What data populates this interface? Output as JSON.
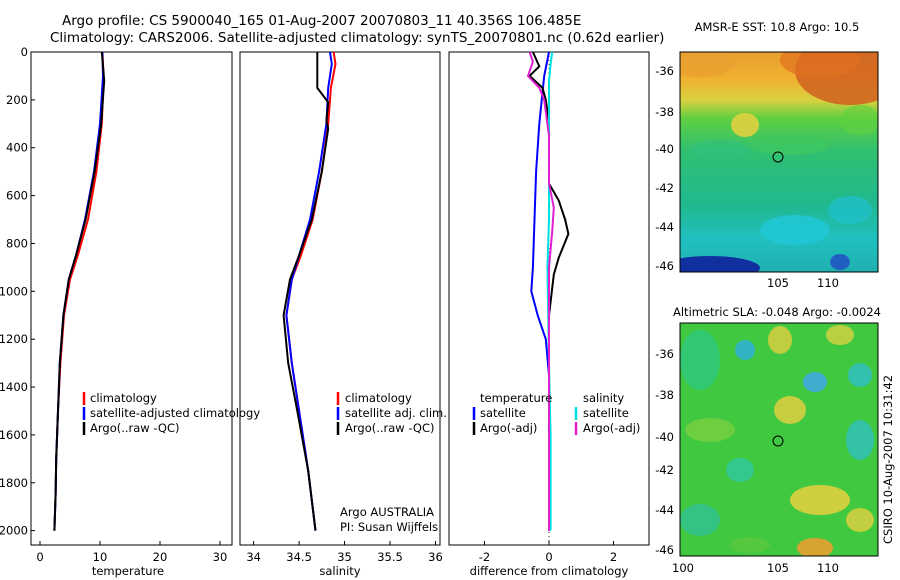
{
  "header": {
    "line1": "Argo profile: CS 5900040_165 01-Aug-2007 20070803_11 40.356S 106.485E",
    "line2": "Climatology: CARS2006. Satellite-adjusted climatology: synTS_20070801.nc (0.62d earlier)"
  },
  "chart_data": [
    {
      "id": "temperature",
      "type": "line",
      "xlabel": "temperature",
      "xlim": [
        -1.5,
        32
      ],
      "ylim": [
        2060,
        0
      ],
      "xticks": [
        "0",
        "10",
        "20",
        "30"
      ],
      "yticks": [
        "0",
        "200",
        "400",
        "600",
        "800",
        "1000",
        "1200",
        "1400",
        "1600",
        "1800",
        "2000"
      ],
      "legend": [
        "climatology",
        "satellite-adjusted climatology",
        "Argo(..raw -QC)"
      ],
      "series": [
        {
          "name": "climatology",
          "color": "#ff0000",
          "points": [
            [
              10.4,
              0
            ],
            [
              10.6,
              100
            ],
            [
              10.3,
              300
            ],
            [
              9.4,
              500
            ],
            [
              8.0,
              700
            ],
            [
              6.3,
              850
            ],
            [
              5.0,
              950
            ],
            [
              4.0,
              1100
            ],
            [
              3.4,
              1300
            ],
            [
              3.0,
              1500
            ],
            [
              2.7,
              1700
            ],
            [
              2.6,
              1850
            ],
            [
              2.4,
              2000
            ]
          ]
        },
        {
          "name": "satellite-adjusted climatology",
          "color": "#0000ff",
          "points": [
            [
              10.4,
              0
            ],
            [
              10.5,
              100
            ],
            [
              10.0,
              300
            ],
            [
              9.0,
              500
            ],
            [
              7.5,
              700
            ],
            [
              6.0,
              850
            ],
            [
              4.8,
              950
            ],
            [
              3.9,
              1100
            ],
            [
              3.3,
              1300
            ],
            [
              3.0,
              1500
            ],
            [
              2.7,
              1700
            ],
            [
              2.6,
              1850
            ],
            [
              2.4,
              2000
            ]
          ]
        },
        {
          "name": "Argo(..raw -QC)",
          "color": "#000000",
          "points": [
            [
              10.3,
              0
            ],
            [
              10.7,
              120
            ],
            [
              10.2,
              300
            ],
            [
              9.1,
              500
            ],
            [
              7.6,
              700
            ],
            [
              6.0,
              850
            ],
            [
              4.8,
              950
            ],
            [
              3.9,
              1100
            ],
            [
              3.3,
              1300
            ],
            [
              3.0,
              1500
            ],
            [
              2.7,
              1700
            ],
            [
              2.6,
              1850
            ],
            [
              2.4,
              2000
            ]
          ]
        }
      ]
    },
    {
      "id": "salinity",
      "type": "line",
      "xlabel": "salinity",
      "xlim": [
        33.85,
        36.05
      ],
      "ylim": [
        2060,
        0
      ],
      "xticks": [
        "34",
        "34.5",
        "35",
        "35.5",
        "36"
      ],
      "legend": [
        "climatology",
        "satellite adj. clim.",
        "Argo(..raw -QC)"
      ],
      "annotation": [
        "Argo AUSTRALIA",
        "PI: Susan Wijffels"
      ],
      "series": [
        {
          "name": "climatology",
          "color": "#ff0000",
          "points": [
            [
              34.88,
              0
            ],
            [
              34.9,
              50
            ],
            [
              34.85,
              150
            ],
            [
              34.82,
              300
            ],
            [
              34.75,
              500
            ],
            [
              34.65,
              700
            ],
            [
              34.52,
              850
            ],
            [
              34.42,
              950
            ],
            [
              34.36,
              1100
            ],
            [
              34.42,
              1300
            ],
            [
              34.5,
              1500
            ],
            [
              34.6,
              1750
            ],
            [
              34.68,
              2000
            ]
          ]
        },
        {
          "name": "satellite adj. clim.",
          "color": "#0000ff",
          "points": [
            [
              34.84,
              0
            ],
            [
              34.86,
              50
            ],
            [
              34.82,
              150
            ],
            [
              34.8,
              300
            ],
            [
              34.72,
              500
            ],
            [
              34.62,
              700
            ],
            [
              34.5,
              850
            ],
            [
              34.42,
              950
            ],
            [
              34.36,
              1100
            ],
            [
              34.42,
              1300
            ],
            [
              34.5,
              1500
            ],
            [
              34.6,
              1750
            ],
            [
              34.68,
              2000
            ]
          ]
        },
        {
          "name": "Argo(..raw -QC)",
          "color": "#000000",
          "points": [
            [
              34.7,
              0
            ],
            [
              34.7,
              150
            ],
            [
              34.82,
              210
            ],
            [
              34.8,
              290
            ],
            [
              34.82,
              320
            ],
            [
              34.75,
              500
            ],
            [
              34.64,
              700
            ],
            [
              34.5,
              850
            ],
            [
              34.4,
              950
            ],
            [
              34.33,
              1100
            ],
            [
              34.38,
              1300
            ],
            [
              34.48,
              1500
            ],
            [
              34.6,
              1750
            ],
            [
              34.68,
              2000
            ]
          ]
        }
      ]
    },
    {
      "id": "difference",
      "type": "line",
      "xlabel": "difference from climatology",
      "xlim": [
        -3.1,
        3.1
      ],
      "ylim": [
        2060,
        0
      ],
      "xticks": [
        "-2",
        "0",
        "2"
      ],
      "legend_columns": [
        {
          "heading": "temperature",
          "entries": [
            "satellite",
            "Argo(-adj)"
          ]
        },
        {
          "heading": "salinity",
          "entries": [
            "satellite",
            "Argo(-adj)"
          ]
        }
      ],
      "series": [
        {
          "name": "temperature satellite",
          "color": "#0000ff",
          "points": [
            [
              0,
              0
            ],
            [
              -0.15,
              100
            ],
            [
              -0.3,
              300
            ],
            [
              -0.4,
              500
            ],
            [
              -0.45,
              700
            ],
            [
              -0.5,
              900
            ],
            [
              -0.55,
              1000
            ],
            [
              -0.35,
              1100
            ],
            [
              -0.1,
              1200
            ],
            [
              0,
              1350
            ],
            [
              0,
              2000
            ]
          ]
        },
        {
          "name": "temperature Argo(-adj)",
          "color": "#000000",
          "points": [
            [
              -0.5,
              0
            ],
            [
              -0.3,
              60
            ],
            [
              -0.6,
              100
            ],
            [
              -0.2,
              150
            ],
            [
              -0.1,
              200
            ],
            [
              0,
              300
            ],
            [
              0,
              550
            ],
            [
              0.3,
              620
            ],
            [
              0.5,
              700
            ],
            [
              0.6,
              760
            ],
            [
              0.3,
              860
            ],
            [
              0.15,
              930
            ],
            [
              0,
              1100
            ],
            [
              0,
              2000
            ]
          ]
        },
        {
          "name": "salinity satellite",
          "color": "#00e0e0",
          "points": [
            [
              0.1,
              0
            ],
            [
              0.05,
              50
            ],
            [
              0,
              120
            ],
            [
              0,
              300
            ],
            [
              0,
              700
            ],
            [
              -0.05,
              900
            ],
            [
              0,
              1300
            ],
            [
              0.05,
              1600
            ],
            [
              0.05,
              2000
            ]
          ]
        },
        {
          "name": "salinity Argo(-adj)",
          "color": "#e020d0",
          "points": [
            [
              -0.6,
              0
            ],
            [
              -0.5,
              40
            ],
            [
              -0.65,
              100
            ],
            [
              -0.3,
              150
            ],
            [
              -0.15,
              200
            ],
            [
              0,
              350
            ],
            [
              0,
              550
            ],
            [
              0.15,
              650
            ],
            [
              0.1,
              750
            ],
            [
              0,
              900
            ],
            [
              0,
              1300
            ],
            [
              0,
              2000
            ]
          ]
        }
      ]
    }
  ],
  "maps": [
    {
      "title": "AMSR-E SST: 10.8 Argo: 10.5",
      "xticks": [
        "105",
        "110"
      ],
      "yticks": [
        "-36",
        "-38",
        "-40",
        "-42",
        "-44",
        "-46"
      ],
      "marker": {
        "lon": 106.485,
        "lat": -40.356
      }
    },
    {
      "title": "Altimetric SLA: -0.048 Argo: -0.0024",
      "xticks": [
        "100",
        "105",
        "110"
      ],
      "yticks": [
        "-36",
        "-38",
        "-40",
        "-42",
        "-44",
        "-46"
      ],
      "marker": {
        "lon": 106.485,
        "lat": -40.356
      }
    }
  ],
  "side_label": "CSIRO 10-Aug-2007 10:31:42"
}
